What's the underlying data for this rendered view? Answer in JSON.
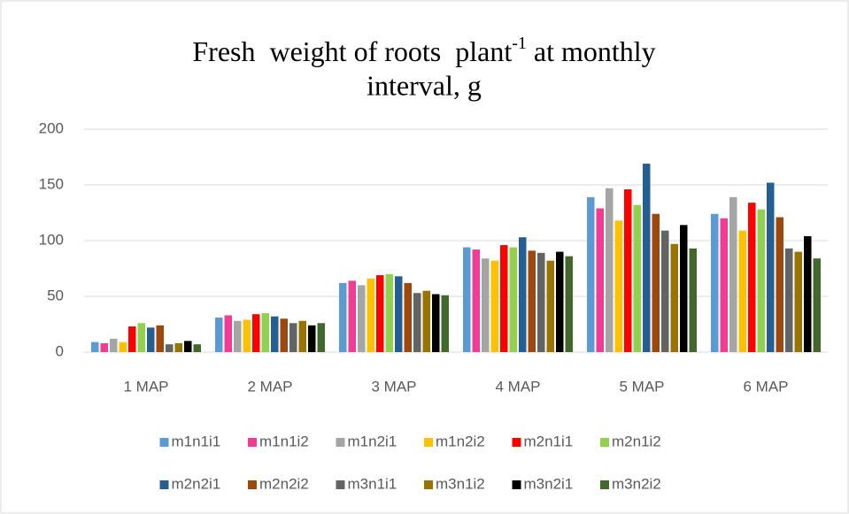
{
  "chart_data": {
    "type": "bar",
    "title": {
      "line1": "Fresh  weight of roots  plant",
      "superscript": "-1",
      "line1_end": " at monthly",
      "line2": "interval, g"
    },
    "categories": [
      "1 MAP",
      "2 MAP",
      "3 MAP",
      "4 MAP",
      "5 MAP",
      "6 MAP"
    ],
    "ylim": [
      0,
      200
    ],
    "yticks": [
      0,
      50,
      100,
      150,
      200
    ],
    "grid": true,
    "series": [
      {
        "name": "m1n1i1",
        "color": "#5b9bd5",
        "values": [
          9,
          31,
          62,
          94,
          139,
          124
        ]
      },
      {
        "name": "m1n1i2",
        "color": "#f03c96",
        "values": [
          8,
          33,
          64,
          92,
          129,
          120
        ]
      },
      {
        "name": "m1n2i1",
        "color": "#a5a5a5",
        "values": [
          12,
          28,
          60,
          84,
          147,
          139
        ]
      },
      {
        "name": "m1n2i2",
        "color": "#ffc000",
        "values": [
          9,
          29,
          66,
          82,
          118,
          109
        ]
      },
      {
        "name": "m2n1i1",
        "color": "#ff0000",
        "values": [
          23,
          34,
          69,
          96,
          146,
          134
        ]
      },
      {
        "name": "m2n1i2",
        "color": "#92d050",
        "values": [
          26,
          35,
          70,
          94,
          132,
          128
        ]
      },
      {
        "name": "m2n2i1",
        "color": "#255e91",
        "values": [
          22,
          32,
          68,
          103,
          169,
          152
        ]
      },
      {
        "name": "m2n2i2",
        "color": "#9e480e",
        "values": [
          24,
          30,
          62,
          91,
          124,
          121
        ]
      },
      {
        "name": "m3n1i1",
        "color": "#636363",
        "values": [
          7,
          26,
          53,
          89,
          109,
          93
        ]
      },
      {
        "name": "m3n1i2",
        "color": "#997300",
        "values": [
          8,
          28,
          55,
          82,
          97,
          90
        ]
      },
      {
        "name": "m3n2i1",
        "color": "#000000",
        "values": [
          10,
          24,
          52,
          90,
          114,
          104
        ]
      },
      {
        "name": "m3n2i2",
        "color": "#43682b",
        "values": [
          7,
          26,
          51,
          86,
          93,
          84
        ]
      }
    ]
  }
}
